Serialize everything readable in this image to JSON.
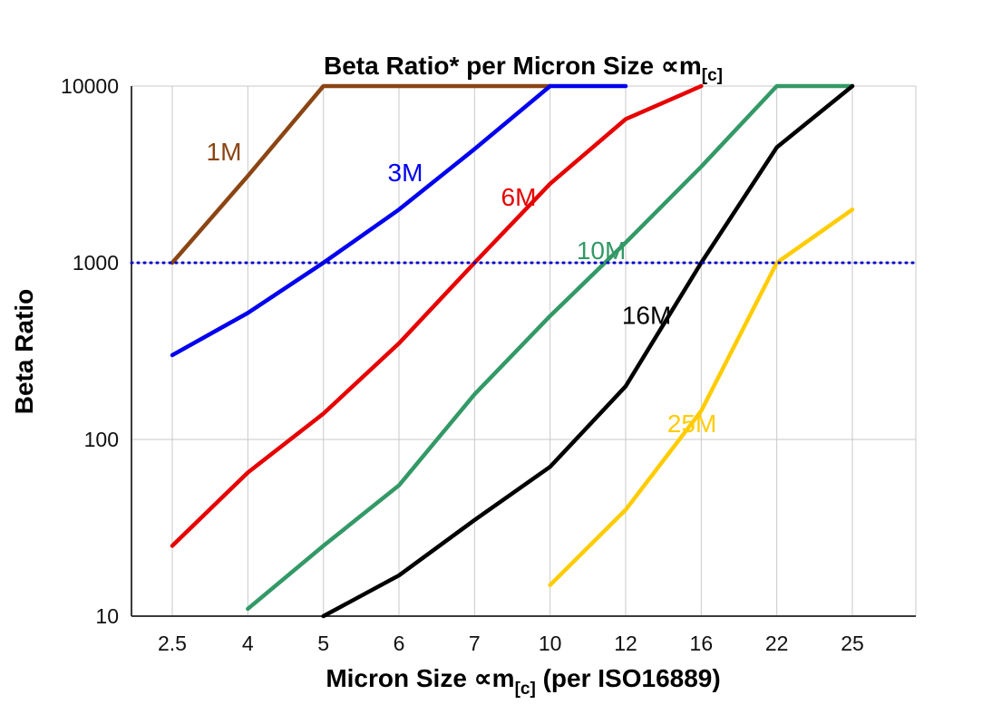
{
  "title": {
    "main": "Beta Ratio* per Micron Size ∝m",
    "sub": "[c]"
  },
  "axes": {
    "y_label": "Beta Ratio",
    "x_label_main": "Micron Size ∝m",
    "x_label_sub": "[c]",
    "x_label_suffix": " (per ISO16889)",
    "y_tick_labels": [
      "10000",
      "1000",
      "100",
      "10"
    ],
    "x_tick_labels": [
      "2.5",
      "4",
      "5",
      "6",
      "7",
      "10",
      "12",
      "16",
      "22",
      "25"
    ]
  },
  "colors": {
    "background": "#ffffff",
    "grid": "#c9c9c9",
    "axis": "#3a3a3a",
    "reference_line": "#0000cc"
  },
  "chart_data": {
    "type": "line",
    "title": "Beta Ratio* per Micron Size ∝m[c]",
    "xlabel": "Micron Size ∝m[c] (per ISO16889)",
    "ylabel": "Beta Ratio",
    "x_categories": [
      "2.5",
      "4",
      "5",
      "6",
      "7",
      "10",
      "12",
      "16",
      "22",
      "25"
    ],
    "y_scale": "log",
    "ylim": [
      10,
      10000
    ],
    "y_ticks": [
      10000,
      1000,
      100,
      10
    ],
    "grid": true,
    "legend_position": "inline-labels",
    "reference_line": {
      "y": 1000,
      "style": "dotted",
      "color": "#0000cc"
    },
    "series": [
      {
        "name": "1M",
        "color": "#8B4513",
        "values": [
          1000,
          3100,
          10000,
          10000,
          10000,
          10000,
          null,
          null,
          null,
          null
        ],
        "label_x": 0.45,
        "label_y": 3800
      },
      {
        "name": "3M",
        "color": "#0000EE",
        "values": [
          300,
          520,
          1000,
          2000,
          4400,
          10000,
          10000,
          null,
          null,
          null
        ],
        "label_x": 2.85,
        "label_y": 2900
      },
      {
        "name": "6M",
        "color": "#E60000",
        "values": [
          25,
          65,
          140,
          350,
          1000,
          2800,
          6500,
          10000,
          null,
          null
        ],
        "label_x": 4.35,
        "label_y": 2100
      },
      {
        "name": "10M",
        "color": "#339966",
        "values": [
          null,
          11,
          25,
          55,
          180,
          500,
          1300,
          3500,
          10000,
          10000
        ],
        "label_x": 5.35,
        "label_y": 1050
      },
      {
        "name": "16M",
        "color": "#000000",
        "values": [
          null,
          null,
          10,
          17,
          35,
          70,
          200,
          1000,
          4500,
          10000
        ],
        "label_x": 5.95,
        "label_y": 450
      },
      {
        "name": "25M",
        "color": "#FFCC00",
        "values": [
          null,
          null,
          null,
          null,
          null,
          15,
          40,
          145,
          1000,
          2000
        ],
        "label_x": 6.55,
        "label_y": 110
      }
    ]
  }
}
